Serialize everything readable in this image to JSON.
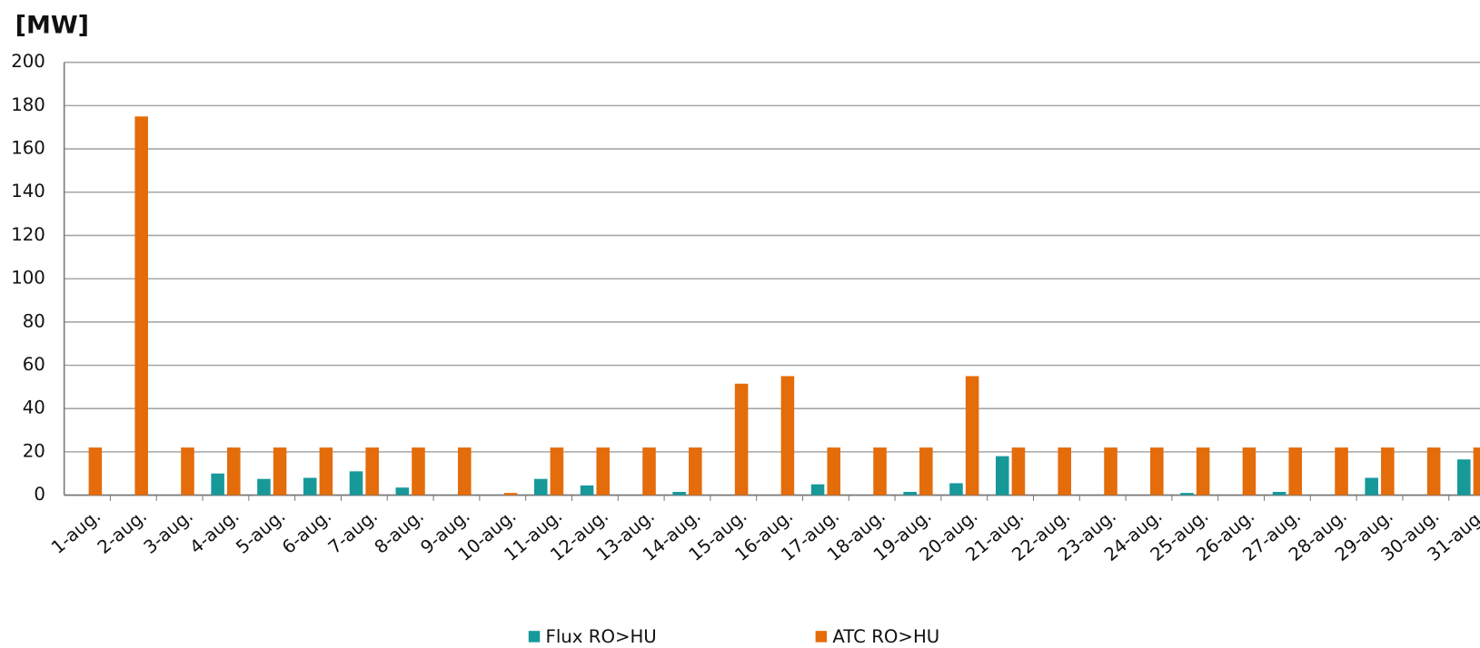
{
  "chart_data": {
    "type": "bar",
    "y_label": "[MW]",
    "categories": [
      "1-aug.",
      "2-aug.",
      "3-aug.",
      "4-aug.",
      "5-aug.",
      "6-aug.",
      "7-aug.",
      "8-aug.",
      "9-aug.",
      "10-aug.",
      "11-aug.",
      "12-aug.",
      "13-aug.",
      "14-aug.",
      "15-aug.",
      "16-aug.",
      "17-aug.",
      "18-aug.",
      "19-aug.",
      "20-aug.",
      "21-aug.",
      "22-aug.",
      "23-aug.",
      "24-aug.",
      "25-aug.",
      "26-aug.",
      "27-aug.",
      "28-aug.",
      "29-aug.",
      "30-aug.",
      "31-aug."
    ],
    "series": [
      {
        "name": "Flux RO>HU",
        "color": "#17999a",
        "values": [
          0,
          0,
          0,
          10,
          7.5,
          8,
          11,
          3.5,
          0,
          0,
          7.5,
          4.5,
          0,
          1.5,
          0,
          0,
          5,
          0,
          1.5,
          5.5,
          18,
          0,
          0,
          0,
          1,
          0,
          1.5,
          0,
          8,
          0,
          16.5
        ]
      },
      {
        "name": "ATC RO>HU",
        "color": "#e46c0a",
        "values": [
          22,
          175,
          22,
          22,
          22,
          22,
          22,
          22,
          22,
          1,
          22,
          22,
          22,
          22,
          51.5,
          55,
          22,
          22,
          22,
          55,
          22,
          22,
          22,
          22,
          22,
          22,
          22,
          22,
          22,
          22,
          22
        ]
      }
    ],
    "ylim": [
      0,
      200
    ],
    "yticks": [
      0,
      20,
      40,
      60,
      80,
      100,
      120,
      140,
      160,
      180,
      200
    ],
    "grid": true
  }
}
